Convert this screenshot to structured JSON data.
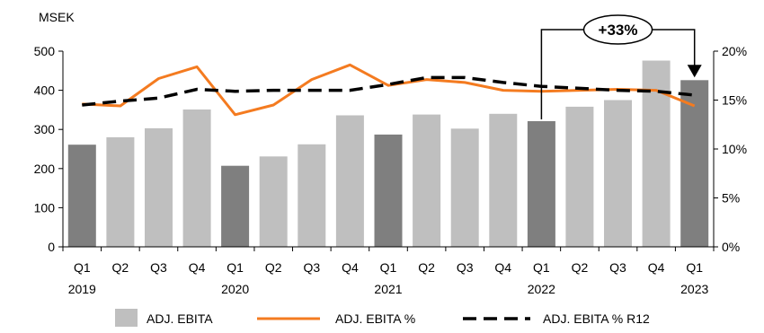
{
  "chart_data": {
    "type": "bar+line",
    "unit_label": "MSEK",
    "categories": [
      "Q1",
      "Q2",
      "Q3",
      "Q4",
      "Q1",
      "Q2",
      "Q3",
      "Q4",
      "Q1",
      "Q2",
      "Q3",
      "Q4",
      "Q1",
      "Q2",
      "Q3",
      "Q4",
      "Q1"
    ],
    "year_labels": [
      {
        "index": 0,
        "label": "2019"
      },
      {
        "index": 4,
        "label": "2020"
      },
      {
        "index": 8,
        "label": "2021"
      },
      {
        "index": 12,
        "label": "2022"
      },
      {
        "index": 16,
        "label": "2023"
      }
    ],
    "bars": {
      "name": "ADJ. EBITA",
      "values": [
        261,
        280,
        303,
        351,
        207,
        231,
        262,
        336,
        287,
        338,
        302,
        340,
        321,
        358,
        375,
        476,
        426
      ],
      "highlight_indices": [
        0,
        4,
        8,
        12,
        16
      ]
    },
    "lines": [
      {
        "name": "ADJ. EBITA %",
        "values": [
          14.6,
          14.4,
          17.2,
          18.4,
          13.5,
          14.5,
          17.1,
          18.6,
          16.5,
          17.1,
          16.8,
          16.0,
          15.9,
          16.0,
          16.1,
          16.0,
          14.4
        ]
      },
      {
        "name": "ADJ. EBITA % R12",
        "values": [
          14.5,
          14.9,
          15.2,
          16.1,
          15.9,
          16.0,
          16.0,
          16.0,
          16.6,
          17.3,
          17.3,
          16.8,
          16.4,
          16.2,
          16.0,
          15.9,
          15.5
        ]
      }
    ],
    "y_left": {
      "range": [
        0,
        500
      ],
      "ticks": [
        "0",
        "100",
        "200",
        "300",
        "400",
        "500"
      ]
    },
    "y_right": {
      "range": [
        0,
        20
      ],
      "ticks": [
        "0%",
        "5%",
        "10%",
        "15%",
        "20%"
      ]
    },
    "annotation": {
      "label": "+33%",
      "from_index": 12,
      "to_index": 16
    },
    "legend_position": "bottom",
    "grid": false
  },
  "colors": {
    "bar_light": "#bfbfbf",
    "bar_dark": "#7f7f7f",
    "line_pct": "#f47b20",
    "line_r12": "#000000",
    "axis": "#000000"
  }
}
